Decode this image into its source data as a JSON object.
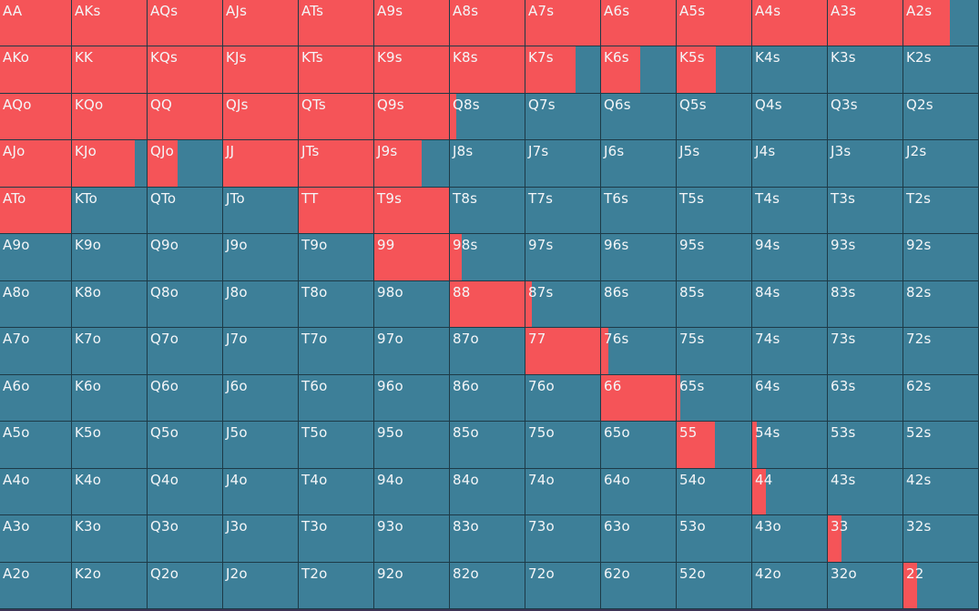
{
  "colors": {
    "raise": "#f55458",
    "fold": "#3d7f98",
    "gridline": "#1d3a47"
  },
  "hands": [
    [
      {
        "label": "AA",
        "frac": 1
      },
      {
        "label": "AKs",
        "frac": 1
      },
      {
        "label": "AQs",
        "frac": 1
      },
      {
        "label": "AJs",
        "frac": 1
      },
      {
        "label": "ATs",
        "frac": 1
      },
      {
        "label": "A9s",
        "frac": 1
      },
      {
        "label": "A8s",
        "frac": 1
      },
      {
        "label": "A7s",
        "frac": 1
      },
      {
        "label": "A6s",
        "frac": 1
      },
      {
        "label": "A5s",
        "frac": 1
      },
      {
        "label": "A4s",
        "frac": 1
      },
      {
        "label": "A3s",
        "frac": 1
      },
      {
        "label": "A2s",
        "frac": 0.62
      }
    ],
    [
      {
        "label": "AKo",
        "frac": 1
      },
      {
        "label": "KK",
        "frac": 1
      },
      {
        "label": "KQs",
        "frac": 1
      },
      {
        "label": "KJs",
        "frac": 1
      },
      {
        "label": "KTs",
        "frac": 1
      },
      {
        "label": "K9s",
        "frac": 1
      },
      {
        "label": "K8s",
        "frac": 1
      },
      {
        "label": "K7s",
        "frac": 0.67
      },
      {
        "label": "K6s",
        "frac": 0.52
      },
      {
        "label": "K5s",
        "frac": 0.52
      },
      {
        "label": "K4s",
        "frac": 0
      },
      {
        "label": "K3s",
        "frac": 0
      },
      {
        "label": "K2s",
        "frac": 0
      }
    ],
    [
      {
        "label": "AQo",
        "frac": 1
      },
      {
        "label": "KQo",
        "frac": 1
      },
      {
        "label": "QQ",
        "frac": 1
      },
      {
        "label": "QJs",
        "frac": 1
      },
      {
        "label": "QTs",
        "frac": 1
      },
      {
        "label": "Q9s",
        "frac": 1
      },
      {
        "label": "Q8s",
        "frac": 0.08
      },
      {
        "label": "Q7s",
        "frac": 0
      },
      {
        "label": "Q6s",
        "frac": 0
      },
      {
        "label": "Q5s",
        "frac": 0
      },
      {
        "label": "Q4s",
        "frac": 0
      },
      {
        "label": "Q3s",
        "frac": 0
      },
      {
        "label": "Q2s",
        "frac": 0
      }
    ],
    [
      {
        "label": "AJo",
        "frac": 1
      },
      {
        "label": "KJo",
        "frac": 0.84
      },
      {
        "label": "QJo",
        "frac": 0.4
      },
      {
        "label": "JJ",
        "frac": 1
      },
      {
        "label": "JTs",
        "frac": 1
      },
      {
        "label": "J9s",
        "frac": 0.63
      },
      {
        "label": "J8s",
        "frac": 0
      },
      {
        "label": "J7s",
        "frac": 0
      },
      {
        "label": "J6s",
        "frac": 0
      },
      {
        "label": "J5s",
        "frac": 0
      },
      {
        "label": "J4s",
        "frac": 0
      },
      {
        "label": "J3s",
        "frac": 0
      },
      {
        "label": "J2s",
        "frac": 0
      }
    ],
    [
      {
        "label": "ATo",
        "frac": 1
      },
      {
        "label": "KTo",
        "frac": 0
      },
      {
        "label": "QTo",
        "frac": 0
      },
      {
        "label": "JTo",
        "frac": 0
      },
      {
        "label": "TT",
        "frac": 1
      },
      {
        "label": "T9s",
        "frac": 1
      },
      {
        "label": "T8s",
        "frac": 0
      },
      {
        "label": "T7s",
        "frac": 0
      },
      {
        "label": "T6s",
        "frac": 0
      },
      {
        "label": "T5s",
        "frac": 0
      },
      {
        "label": "T4s",
        "frac": 0
      },
      {
        "label": "T3s",
        "frac": 0
      },
      {
        "label": "T2s",
        "frac": 0
      }
    ],
    [
      {
        "label": "A9o",
        "frac": 0
      },
      {
        "label": "K9o",
        "frac": 0
      },
      {
        "label": "Q9o",
        "frac": 0
      },
      {
        "label": "J9o",
        "frac": 0
      },
      {
        "label": "T9o",
        "frac": 0
      },
      {
        "label": "99",
        "frac": 1
      },
      {
        "label": "98s",
        "frac": 0.16
      },
      {
        "label": "97s",
        "frac": 0
      },
      {
        "label": "96s",
        "frac": 0
      },
      {
        "label": "95s",
        "frac": 0
      },
      {
        "label": "94s",
        "frac": 0
      },
      {
        "label": "93s",
        "frac": 0
      },
      {
        "label": "92s",
        "frac": 0
      }
    ],
    [
      {
        "label": "A8o",
        "frac": 0
      },
      {
        "label": "K8o",
        "frac": 0
      },
      {
        "label": "Q8o",
        "frac": 0
      },
      {
        "label": "J8o",
        "frac": 0
      },
      {
        "label": "T8o",
        "frac": 0
      },
      {
        "label": "98o",
        "frac": 0
      },
      {
        "label": "88",
        "frac": 1
      },
      {
        "label": "87s",
        "frac": 0.08
      },
      {
        "label": "86s",
        "frac": 0
      },
      {
        "label": "85s",
        "frac": 0
      },
      {
        "label": "84s",
        "frac": 0
      },
      {
        "label": "83s",
        "frac": 0
      },
      {
        "label": "82s",
        "frac": 0
      }
    ],
    [
      {
        "label": "A7o",
        "frac": 0
      },
      {
        "label": "K7o",
        "frac": 0
      },
      {
        "label": "Q7o",
        "frac": 0
      },
      {
        "label": "J7o",
        "frac": 0
      },
      {
        "label": "T7o",
        "frac": 0
      },
      {
        "label": "97o",
        "frac": 0
      },
      {
        "label": "87o",
        "frac": 0
      },
      {
        "label": "77",
        "frac": 1
      },
      {
        "label": "76s",
        "frac": 0.1
      },
      {
        "label": "75s",
        "frac": 0
      },
      {
        "label": "74s",
        "frac": 0
      },
      {
        "label": "73s",
        "frac": 0
      },
      {
        "label": "72s",
        "frac": 0
      }
    ],
    [
      {
        "label": "A6o",
        "frac": 0
      },
      {
        "label": "K6o",
        "frac": 0
      },
      {
        "label": "Q6o",
        "frac": 0
      },
      {
        "label": "J6o",
        "frac": 0
      },
      {
        "label": "T6o",
        "frac": 0
      },
      {
        "label": "96o",
        "frac": 0
      },
      {
        "label": "86o",
        "frac": 0
      },
      {
        "label": "76o",
        "frac": 0
      },
      {
        "label": "66",
        "frac": 1
      },
      {
        "label": "65s",
        "frac": 0.05
      },
      {
        "label": "64s",
        "frac": 0
      },
      {
        "label": "63s",
        "frac": 0
      },
      {
        "label": "62s",
        "frac": 0
      }
    ],
    [
      {
        "label": "A5o",
        "frac": 0
      },
      {
        "label": "K5o",
        "frac": 0
      },
      {
        "label": "Q5o",
        "frac": 0
      },
      {
        "label": "J5o",
        "frac": 0
      },
      {
        "label": "T5o",
        "frac": 0
      },
      {
        "label": "95o",
        "frac": 0
      },
      {
        "label": "85o",
        "frac": 0
      },
      {
        "label": "75o",
        "frac": 0
      },
      {
        "label": "65o",
        "frac": 0
      },
      {
        "label": "55",
        "frac": 0.51
      },
      {
        "label": "54s",
        "frac": 0.06
      },
      {
        "label": "53s",
        "frac": 0
      },
      {
        "label": "52s",
        "frac": 0
      }
    ],
    [
      {
        "label": "A4o",
        "frac": 0
      },
      {
        "label": "K4o",
        "frac": 0
      },
      {
        "label": "Q4o",
        "frac": 0
      },
      {
        "label": "J4o",
        "frac": 0
      },
      {
        "label": "T4o",
        "frac": 0
      },
      {
        "label": "94o",
        "frac": 0
      },
      {
        "label": "84o",
        "frac": 0
      },
      {
        "label": "74o",
        "frac": 0
      },
      {
        "label": "64o",
        "frac": 0
      },
      {
        "label": "54o",
        "frac": 0
      },
      {
        "label": "44",
        "frac": 0.18
      },
      {
        "label": "43s",
        "frac": 0
      },
      {
        "label": "42s",
        "frac": 0
      }
    ],
    [
      {
        "label": "A3o",
        "frac": 0
      },
      {
        "label": "K3o",
        "frac": 0
      },
      {
        "label": "Q3o",
        "frac": 0
      },
      {
        "label": "J3o",
        "frac": 0
      },
      {
        "label": "T3o",
        "frac": 0
      },
      {
        "label": "93o",
        "frac": 0
      },
      {
        "label": "83o",
        "frac": 0
      },
      {
        "label": "73o",
        "frac": 0
      },
      {
        "label": "63o",
        "frac": 0
      },
      {
        "label": "53o",
        "frac": 0
      },
      {
        "label": "43o",
        "frac": 0
      },
      {
        "label": "33",
        "frac": 0.18
      },
      {
        "label": "32s",
        "frac": 0
      }
    ],
    [
      {
        "label": "A2o",
        "frac": 0
      },
      {
        "label": "K2o",
        "frac": 0
      },
      {
        "label": "Q2o",
        "frac": 0
      },
      {
        "label": "J2o",
        "frac": 0
      },
      {
        "label": "T2o",
        "frac": 0
      },
      {
        "label": "92o",
        "frac": 0
      },
      {
        "label": "82o",
        "frac": 0
      },
      {
        "label": "72o",
        "frac": 0
      },
      {
        "label": "62o",
        "frac": 0
      },
      {
        "label": "52o",
        "frac": 0
      },
      {
        "label": "42o",
        "frac": 0
      },
      {
        "label": "32o",
        "frac": 0
      },
      {
        "label": "22",
        "frac": 0.18
      }
    ]
  ]
}
